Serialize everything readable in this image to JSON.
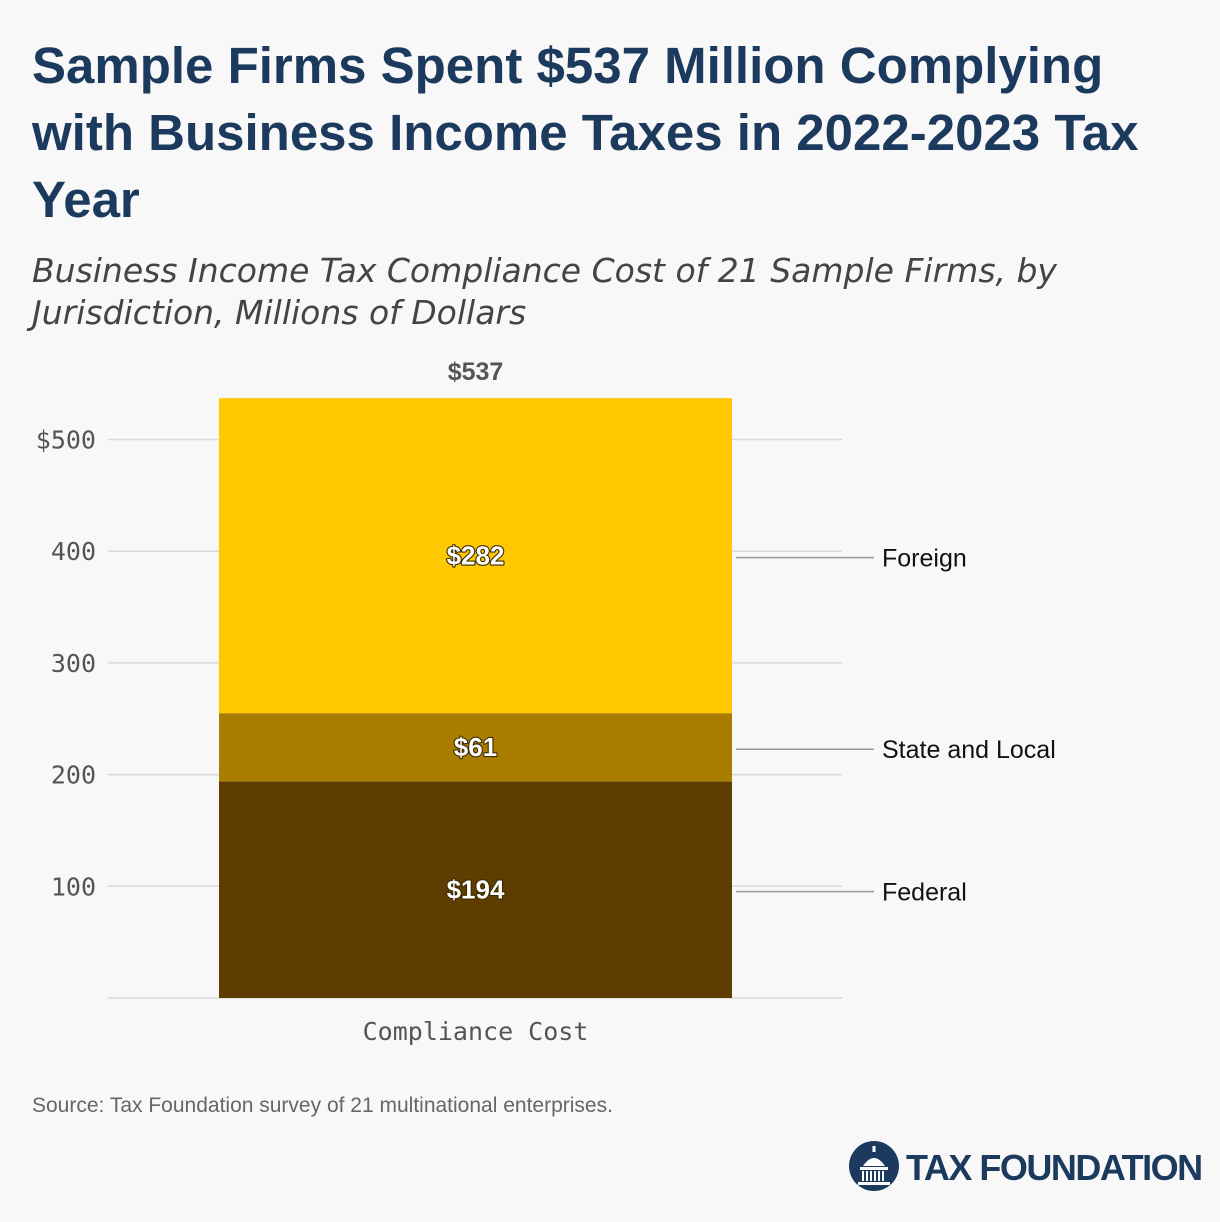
{
  "header": {
    "title": "Sample Firms Spent $537 Million Complying with Business Income Taxes in 2022-2023 Tax Year",
    "subtitle": "Business Income Tax Compliance Cost of 21 Sample Firms, by Jurisdiction, Millions of Dollars"
  },
  "footer": {
    "source": "Source: Tax Foundation survey of 21 multinational enterprises.",
    "logo_text": "TAX FOUNDATION"
  },
  "colors": {
    "title": "#1b3a5d",
    "foreign": "#ffc800",
    "state_and_local": "#a97e00",
    "federal": "#5f3c00",
    "grid": "#d9d9d9",
    "axis_text": "#555555"
  },
  "chart_data": {
    "type": "bar",
    "stacked": true,
    "categories": [
      "Compliance Cost"
    ],
    "series": [
      {
        "name": "Federal",
        "values": [
          194
        ],
        "label": "$194",
        "color": "#5f3c00"
      },
      {
        "name": "State and Local",
        "values": [
          61
        ],
        "label": "$61",
        "color": "#a97e00"
      },
      {
        "name": "Foreign",
        "values": [
          282
        ],
        "label": "$282",
        "color": "#ffc800"
      }
    ],
    "total_label": "$537",
    "ylim": [
      0,
      537
    ],
    "yticks": [
      {
        "value": 100,
        "label": "100"
      },
      {
        "value": 200,
        "label": "200"
      },
      {
        "value": 300,
        "label": "300"
      },
      {
        "value": 400,
        "label": "400"
      },
      {
        "value": 500,
        "label": "$500"
      }
    ],
    "grid": true,
    "legend": "direct labels, right of bar"
  }
}
